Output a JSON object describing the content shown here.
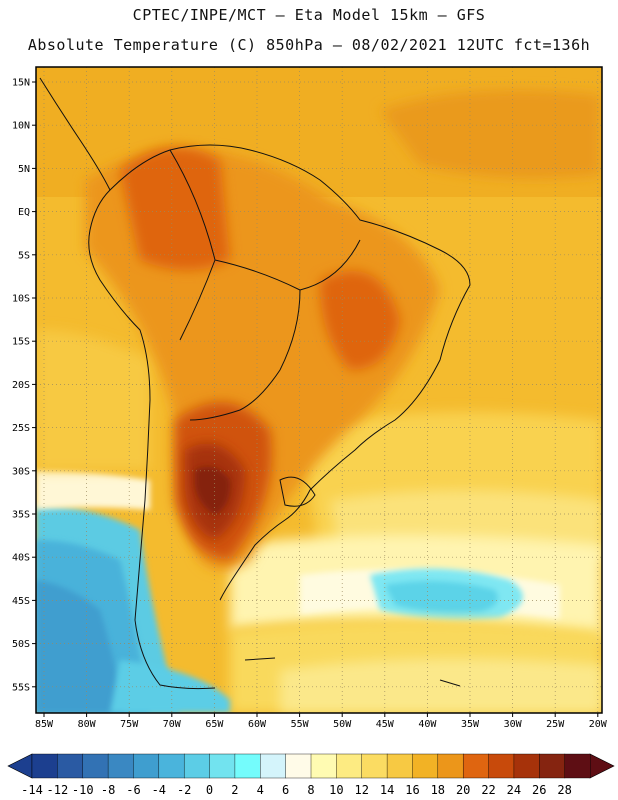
{
  "header": {
    "line1": "CPTEC/INPE/MCT –  Eta Model 15km – GFS",
    "line2": "Absolute Temperature (C) 850hPa – 08/02/2021 12UTC fct=136h"
  },
  "map": {
    "lat_labels": [
      "15N",
      "10N",
      "5N",
      "EQ",
      "5S",
      "10S",
      "15S",
      "20S",
      "25S",
      "30S",
      "35S",
      "40S",
      "45S",
      "50S",
      "55S"
    ],
    "lon_labels": [
      "85W",
      "80W",
      "75W",
      "70W",
      "65W",
      "60W",
      "55W",
      "50W",
      "45W",
      "40W",
      "35W",
      "30W",
      "25W",
      "20W"
    ]
  },
  "colorbar": {
    "levels": [
      "-14",
      "-12",
      "-10",
      "-8",
      "-6",
      "-4",
      "-2",
      "0",
      "2",
      "4",
      "6",
      "8",
      "10",
      "12",
      "14",
      "16",
      "18",
      "20",
      "22",
      "24",
      "26",
      "28"
    ],
    "colors": [
      "#1c3f8f",
      "#2a5aa3",
      "#3272b4",
      "#3a88c2",
      "#3f9ecf",
      "#4ab4dc",
      "#5ccde6",
      "#72e3ef",
      "#74fcfc",
      "#d4f4fb",
      "#fffbe8",
      "#fffbb2",
      "#fdeb82",
      "#fbdc62",
      "#f7c943",
      "#f2b225",
      "#ec961a",
      "#df6510",
      "#c84a0b",
      "#a6320a",
      "#852410",
      "#5e0e14"
    ],
    "low_color": "#1c3f8f",
    "high_color": "#5e0e14"
  }
}
